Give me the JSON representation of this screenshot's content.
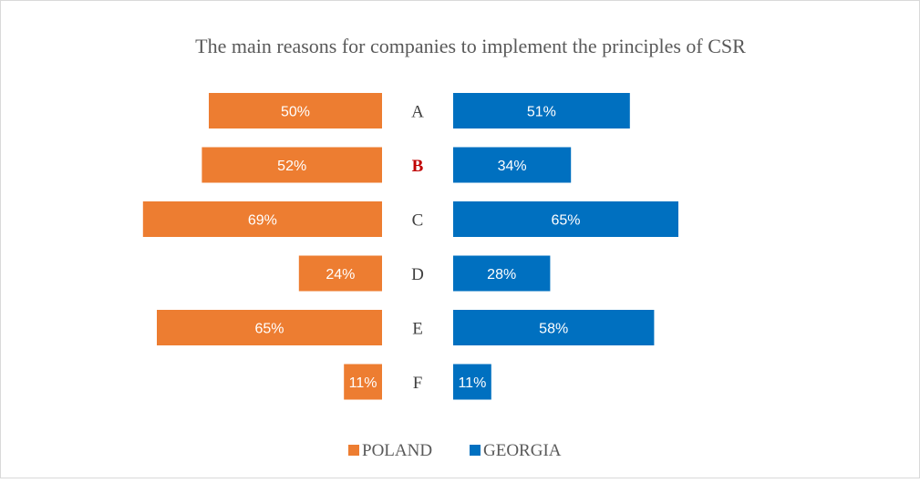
{
  "chart_data": {
    "type": "bar",
    "orientation": "horizontal-butterfly",
    "title": "The main reasons for companies to implement the principles of CSR",
    "categories": [
      "A",
      "B",
      "C",
      "D",
      "E",
      "F"
    ],
    "highlighted_category": "B",
    "series": [
      {
        "name": "POLAND",
        "color": "#ED7D31",
        "values": [
          50,
          52,
          69,
          24,
          65,
          11
        ],
        "labels": [
          "50%",
          "52%",
          "69%",
          "24%",
          "65%",
          "11%"
        ]
      },
      {
        "name": "GEORGIA",
        "color": "#0070C0",
        "values": [
          51,
          34,
          65,
          28,
          58,
          11
        ],
        "labels": [
          "51%",
          "34%",
          "65%",
          "28%",
          "58%",
          "11%"
        ]
      }
    ],
    "value_unit": "%",
    "xlim": [
      0,
      100
    ],
    "legend_position": "bottom",
    "grid": false,
    "highlight_color": "#C00000"
  }
}
